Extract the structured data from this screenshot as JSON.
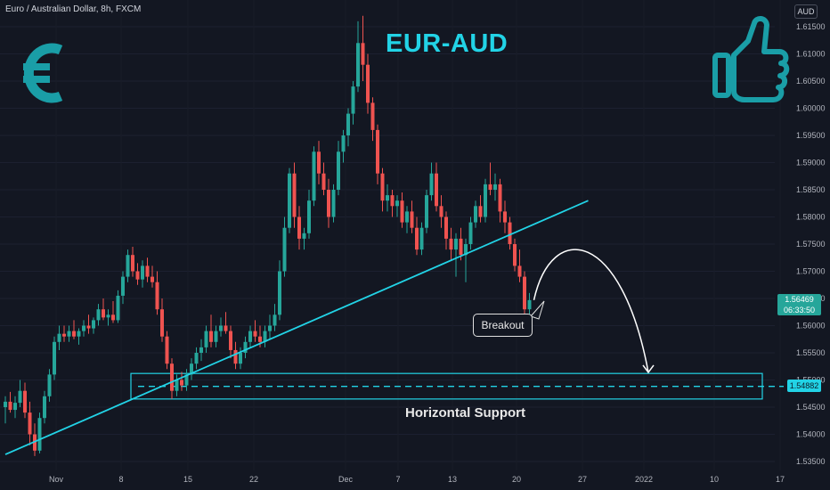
{
  "header": {
    "symbol_line": "Euro / Australian Dollar, 8h, FXCM",
    "currency": "AUD"
  },
  "title": "EUR-AUD",
  "annotations": {
    "breakout": "Breakout",
    "support": "Horizontal Support"
  },
  "price_tags": {
    "last_price": "1.56469",
    "countdown": "06:33:50",
    "support_level": "1.54882"
  },
  "icons": {
    "left": "euro-sign-icon",
    "right": "thumbs-up-icon"
  },
  "colors": {
    "up": "#26a69a",
    "down": "#ef5350",
    "accent": "#22d3e6",
    "background": "#131722"
  },
  "chart_data": {
    "type": "candlestick",
    "y_ticks": [
      "1.61500",
      "1.61000",
      "1.60500",
      "1.60000",
      "1.59500",
      "1.59000",
      "1.58500",
      "1.58000",
      "1.57500",
      "1.57000",
      "1.56500",
      "1.56000",
      "1.55500",
      "1.55000",
      "1.54500",
      "1.54000",
      "1.53500"
    ],
    "y_tick_values": [
      1.615,
      1.61,
      1.605,
      1.6,
      1.595,
      1.59,
      1.585,
      1.58,
      1.575,
      1.57,
      1.565,
      1.56,
      1.555,
      1.55,
      1.545,
      1.54,
      1.535
    ],
    "x_ticks": [
      "Nov",
      "8",
      "15",
      "22",
      "Dec",
      "7",
      "13",
      "20",
      "27",
      "2022",
      "10",
      "17"
    ],
    "trendline": {
      "from": [
        0,
        1.5363
      ],
      "to": [
        119,
        1.583
      ]
    },
    "support_level": 1.54882,
    "support_zone": [
      1.5465,
      1.5512
    ],
    "projected_target": 1.5514,
    "candles": [
      [
        1.545,
        1.547,
        1.542,
        1.546
      ],
      [
        1.546,
        1.5478,
        1.544,
        1.5445
      ],
      [
        1.5445,
        1.547,
        1.543,
        1.5458
      ],
      [
        1.5458,
        1.55,
        1.545,
        1.548
      ],
      [
        1.548,
        1.5495,
        1.543,
        1.544
      ],
      [
        1.544,
        1.546,
        1.538,
        1.54
      ],
      [
        1.54,
        1.542,
        1.536,
        1.537
      ],
      [
        1.537,
        1.544,
        1.5365,
        1.543
      ],
      [
        1.543,
        1.548,
        1.542,
        1.547
      ],
      [
        1.547,
        1.552,
        1.546,
        1.551
      ],
      [
        1.551,
        1.558,
        1.55,
        1.557
      ],
      [
        1.557,
        1.56,
        1.5555,
        1.5585
      ],
      [
        1.5585,
        1.56,
        1.557,
        1.558
      ],
      [
        1.558,
        1.56,
        1.557,
        1.559
      ],
      [
        1.559,
        1.561,
        1.5575,
        1.558
      ],
      [
        1.558,
        1.5595,
        1.5565,
        1.559
      ],
      [
        1.559,
        1.561,
        1.558,
        1.56
      ],
      [
        1.56,
        1.562,
        1.5585,
        1.5595
      ],
      [
        1.5595,
        1.5615,
        1.5585,
        1.561
      ],
      [
        1.561,
        1.564,
        1.56,
        1.563
      ],
      [
        1.563,
        1.565,
        1.561,
        1.5615
      ],
      [
        1.5615,
        1.563,
        1.56,
        1.562
      ],
      [
        1.562,
        1.5645,
        1.5605,
        1.561
      ],
      [
        1.561,
        1.5665,
        1.5605,
        1.5655
      ],
      [
        1.5655,
        1.57,
        1.564,
        1.569
      ],
      [
        1.569,
        1.574,
        1.568,
        1.573
      ],
      [
        1.573,
        1.5745,
        1.569,
        1.57
      ],
      [
        1.57,
        1.5715,
        1.5675,
        1.5685
      ],
      [
        1.5685,
        1.572,
        1.567,
        1.571
      ],
      [
        1.571,
        1.5725,
        1.568,
        1.569
      ],
      [
        1.569,
        1.571,
        1.567,
        1.568
      ],
      [
        1.568,
        1.57,
        1.562,
        1.563
      ],
      [
        1.563,
        1.565,
        1.557,
        1.558
      ],
      [
        1.558,
        1.559,
        1.552,
        1.553
      ],
      [
        1.553,
        1.554,
        1.5465,
        1.548
      ],
      [
        1.548,
        1.551,
        1.547,
        1.55
      ],
      [
        1.55,
        1.5515,
        1.548,
        1.549
      ],
      [
        1.549,
        1.552,
        1.548,
        1.551
      ],
      [
        1.551,
        1.554,
        1.55,
        1.553
      ],
      [
        1.553,
        1.556,
        1.552,
        1.555
      ],
      [
        1.555,
        1.5575,
        1.5535,
        1.556
      ],
      [
        1.556,
        1.56,
        1.555,
        1.559
      ],
      [
        1.559,
        1.562,
        1.556,
        1.557
      ],
      [
        1.557,
        1.56,
        1.556,
        1.559
      ],
      [
        1.559,
        1.5615,
        1.558,
        1.56
      ],
      [
        1.56,
        1.5625,
        1.5585,
        1.559
      ],
      [
        1.559,
        1.56,
        1.554,
        1.5555
      ],
      [
        1.5555,
        1.557,
        1.552,
        1.553
      ],
      [
        1.553,
        1.556,
        1.552,
        1.555
      ],
      [
        1.555,
        1.558,
        1.554,
        1.557
      ],
      [
        1.557,
        1.56,
        1.556,
        1.559
      ],
      [
        1.559,
        1.561,
        1.557,
        1.558
      ],
      [
        1.558,
        1.56,
        1.556,
        1.557
      ],
      [
        1.557,
        1.56,
        1.556,
        1.559
      ],
      [
        1.559,
        1.562,
        1.5575,
        1.56
      ],
      [
        1.56,
        1.564,
        1.559,
        1.562
      ],
      [
        1.562,
        1.572,
        1.561,
        1.57
      ],
      [
        1.57,
        1.58,
        1.569,
        1.578
      ],
      [
        1.578,
        1.589,
        1.577,
        1.588
      ],
      [
        1.588,
        1.59,
        1.578,
        1.58
      ],
      [
        1.58,
        1.582,
        1.574,
        1.576
      ],
      [
        1.576,
        1.578,
        1.574,
        1.577
      ],
      [
        1.577,
        1.585,
        1.576,
        1.583
      ],
      [
        1.583,
        1.593,
        1.582,
        1.592
      ],
      [
        1.592,
        1.594,
        1.586,
        1.588
      ],
      [
        1.588,
        1.59,
        1.584,
        1.585
      ],
      [
        1.585,
        1.587,
        1.578,
        1.58
      ],
      [
        1.58,
        1.586,
        1.579,
        1.585
      ],
      [
        1.585,
        1.594,
        1.584,
        1.592
      ],
      [
        1.592,
        1.596,
        1.59,
        1.595
      ],
      [
        1.595,
        1.6,
        1.593,
        1.599
      ],
      [
        1.599,
        1.605,
        1.597,
        1.604
      ],
      [
        1.604,
        1.616,
        1.603,
        1.612
      ],
      [
        1.612,
        1.617,
        1.605,
        1.608
      ],
      [
        1.608,
        1.61,
        1.599,
        1.601
      ],
      [
        1.601,
        1.602,
        1.594,
        1.596
      ],
      [
        1.596,
        1.597,
        1.586,
        1.588
      ],
      [
        1.588,
        1.589,
        1.581,
        1.583
      ],
      [
        1.583,
        1.586,
        1.581,
        1.584
      ],
      [
        1.584,
        1.585,
        1.58,
        1.582
      ],
      [
        1.582,
        1.584,
        1.58,
        1.583
      ],
      [
        1.583,
        1.5845,
        1.578,
        1.579
      ],
      [
        1.579,
        1.582,
        1.577,
        1.581
      ],
      [
        1.581,
        1.583,
        1.577,
        1.578
      ],
      [
        1.578,
        1.58,
        1.573,
        1.574
      ],
      [
        1.574,
        1.579,
        1.573,
        1.578
      ],
      [
        1.578,
        1.585,
        1.577,
        1.584
      ],
      [
        1.584,
        1.59,
        1.583,
        1.588
      ],
      [
        1.588,
        1.59,
        1.581,
        1.582
      ],
      [
        1.582,
        1.584,
        1.578,
        1.58
      ],
      [
        1.58,
        1.581,
        1.574,
        1.576
      ],
      [
        1.576,
        1.578,
        1.572,
        1.574
      ],
      [
        1.574,
        1.577,
        1.569,
        1.576
      ],
      [
        1.576,
        1.578,
        1.572,
        1.573
      ],
      [
        1.573,
        1.576,
        1.568,
        1.575
      ],
      [
        1.575,
        1.58,
        1.574,
        1.579
      ],
      [
        1.579,
        1.583,
        1.578,
        1.582
      ],
      [
        1.582,
        1.584,
        1.579,
        1.58
      ],
      [
        1.58,
        1.587,
        1.579,
        1.586
      ],
      [
        1.586,
        1.59,
        1.584,
        1.585
      ],
      [
        1.585,
        1.588,
        1.583,
        1.586
      ],
      [
        1.586,
        1.587,
        1.579,
        1.581
      ],
      [
        1.581,
        1.583,
        1.577,
        1.579
      ],
      [
        1.579,
        1.58,
        1.574,
        1.575
      ],
      [
        1.575,
        1.576,
        1.57,
        1.571
      ],
      [
        1.571,
        1.574,
        1.568,
        1.569
      ],
      [
        1.569,
        1.57,
        1.562,
        1.563
      ],
      [
        1.563,
        1.566,
        1.562,
        1.5647
      ]
    ]
  }
}
